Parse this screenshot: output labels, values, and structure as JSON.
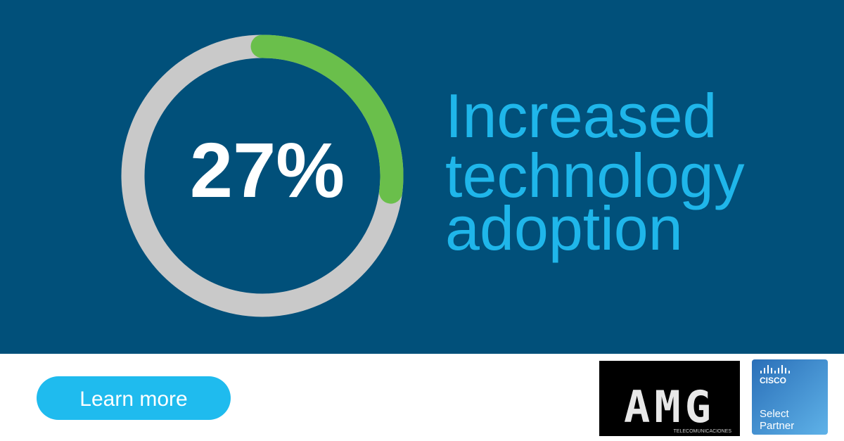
{
  "stat": {
    "value": 27,
    "label": "27%"
  },
  "headline": [
    "Increased",
    "technology",
    "adoption"
  ],
  "button": "Learn more",
  "logos": {
    "amg": {
      "text": "AMG",
      "subtitle": "TELECOMUNICACIONES"
    },
    "cisco": {
      "brand": "CISCO",
      "line1": "Select",
      "line2": "Partner"
    }
  }
}
